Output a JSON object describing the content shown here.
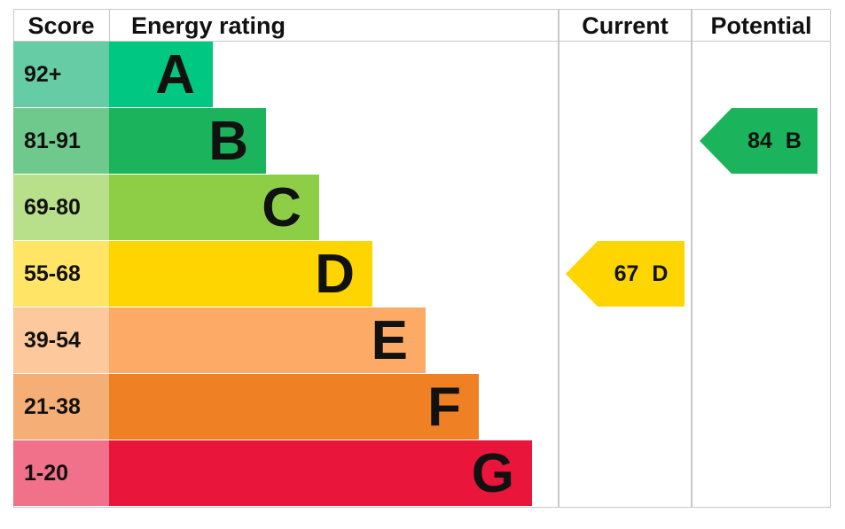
{
  "chart_data": {
    "type": "table",
    "headers": {
      "score": "Score",
      "rating": "Energy rating",
      "current": "Current",
      "potential": "Potential"
    },
    "bands": [
      {
        "score": "92+",
        "letter": "A",
        "color": "#00c781",
        "light": "#66cca6"
      },
      {
        "score": "81-91",
        "letter": "B",
        "color": "#1bb35b",
        "light": "#6fc98c"
      },
      {
        "score": "69-80",
        "letter": "C",
        "color": "#8dce46",
        "light": "#b8df8a"
      },
      {
        "score": "55-68",
        "letter": "D",
        "color": "#ffd500",
        "light": "#ffe466"
      },
      {
        "score": "39-54",
        "letter": "E",
        "color": "#fcaa65",
        "light": "#fdc89b"
      },
      {
        "score": "21-38",
        "letter": "F",
        "color": "#ef8023",
        "light": "#f4ae76"
      },
      {
        "score": "1-20",
        "letter": "G",
        "color": "#e9153b",
        "light": "#f07189"
      }
    ],
    "current": {
      "value": 67,
      "letter": "D",
      "label": "67 D",
      "color": "#ffd500"
    },
    "potential": {
      "value": 84,
      "letter": "B",
      "label": "84 B",
      "color": "#1bb35b"
    }
  }
}
